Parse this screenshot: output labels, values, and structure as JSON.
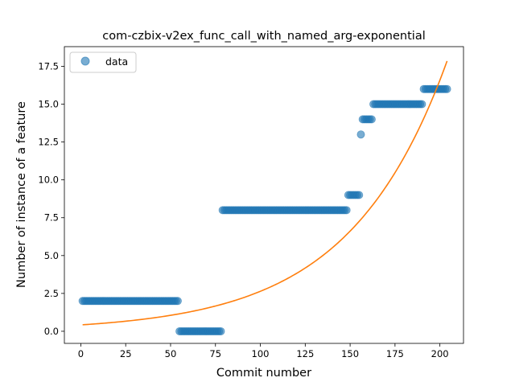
{
  "chart_data": {
    "type": "scatter",
    "title": "com-czbix-v2ex_func_call_with_named_arg-exponential",
    "xlabel": "Commit number",
    "ylabel": "Number of instance of a feature",
    "xlim": [
      -9.15,
      213.15
    ],
    "ylim": [
      -0.8,
      18.8
    ],
    "xticks": [
      0,
      25,
      50,
      75,
      100,
      125,
      150,
      175,
      200
    ],
    "yticks": [
      0.0,
      2.5,
      5.0,
      7.5,
      10.0,
      12.5,
      15.0,
      17.5
    ],
    "xtick_labels": [
      "0",
      "25",
      "50",
      "75",
      "100",
      "125",
      "150",
      "175",
      "200"
    ],
    "ytick_labels": [
      "0.0",
      "2.5",
      "5.0",
      "7.5",
      "10.0",
      "12.5",
      "15.0",
      "17.5"
    ],
    "grid": false,
    "legend": {
      "placement": "top-left",
      "entries": [
        "data"
      ]
    },
    "series": [
      {
        "name": "data",
        "kind": "scatter",
        "color": "#1f77b4",
        "alpha": 0.6,
        "segments": [
          {
            "x_start": 1,
            "x_end": 54,
            "y": 2
          },
          {
            "x_start": 55,
            "x_end": 78,
            "y": 0
          },
          {
            "x_start": 79,
            "x_end": 148,
            "y": 8
          },
          {
            "x_start": 149,
            "x_end": 155,
            "y": 9
          },
          {
            "x_start": 156,
            "x_end": 156,
            "y": 13
          },
          {
            "x_start": 157,
            "x_end": 162,
            "y": 14
          },
          {
            "x_start": 163,
            "x_end": 190,
            "y": 15
          },
          {
            "x_start": 191,
            "x_end": 204,
            "y": 16
          }
        ]
      },
      {
        "name": "",
        "kind": "line",
        "color": "#ff7f0e",
        "model": "exponential",
        "a": 0.42,
        "b": 0.01838,
        "x_range": [
          1,
          204
        ]
      }
    ]
  }
}
